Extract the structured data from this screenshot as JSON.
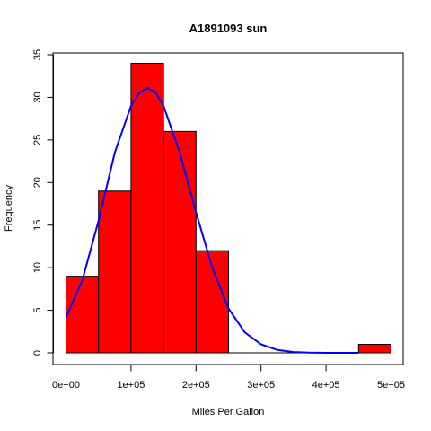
{
  "chart_data": {
    "type": "bar",
    "title": "A1891093 sun",
    "xlabel": "Miles Per Gallon",
    "ylabel": "Frequency",
    "xlim": [
      0,
      500000
    ],
    "ylim": [
      0,
      35
    ],
    "x_ticks": [
      0,
      100000,
      200000,
      300000,
      400000,
      500000
    ],
    "x_tick_labels": [
      "0e+00",
      "1e+05",
      "2e+05",
      "3e+05",
      "4e+05",
      "5e+05"
    ],
    "y_ticks": [
      0,
      5,
      10,
      15,
      20,
      25,
      30,
      35
    ],
    "y_tick_labels": [
      "0",
      "5",
      "10",
      "15",
      "20",
      "25",
      "30",
      "35"
    ],
    "bins": [
      {
        "start": 0,
        "end": 50000,
        "count": 9
      },
      {
        "start": 50000,
        "end": 100000,
        "count": 19
      },
      {
        "start": 100000,
        "end": 150000,
        "count": 34
      },
      {
        "start": 150000,
        "end": 200000,
        "count": 26
      },
      {
        "start": 200000,
        "end": 250000,
        "count": 12
      },
      {
        "start": 250000,
        "end": 300000,
        "count": 0
      },
      {
        "start": 300000,
        "end": 350000,
        "count": 0
      },
      {
        "start": 350000,
        "end": 400000,
        "count": 0
      },
      {
        "start": 400000,
        "end": 450000,
        "count": 0
      },
      {
        "start": 450000,
        "end": 500000,
        "count": 1
      }
    ],
    "density_curve": {
      "x": [
        0,
        25000,
        50000,
        75000,
        100000,
        112500,
        125000,
        137500,
        150000,
        175000,
        200000,
        225000,
        250000,
        275000,
        300000,
        325000,
        350000,
        375000,
        400000,
        425000,
        450000
      ],
      "y": [
        4.2,
        8.5,
        15.5,
        23.5,
        29.0,
        30.5,
        31.1,
        30.6,
        29.0,
        23.5,
        16.5,
        10.0,
        5.2,
        2.4,
        1.0,
        0.35,
        0.1,
        0.02,
        0.0,
        0.0,
        0.0
      ]
    },
    "colors": {
      "bar_fill": "#ff0000",
      "bar_stroke": "#000000",
      "curve": "#0000ff",
      "axis": "#000000"
    },
    "grid": false,
    "legend": "none"
  }
}
